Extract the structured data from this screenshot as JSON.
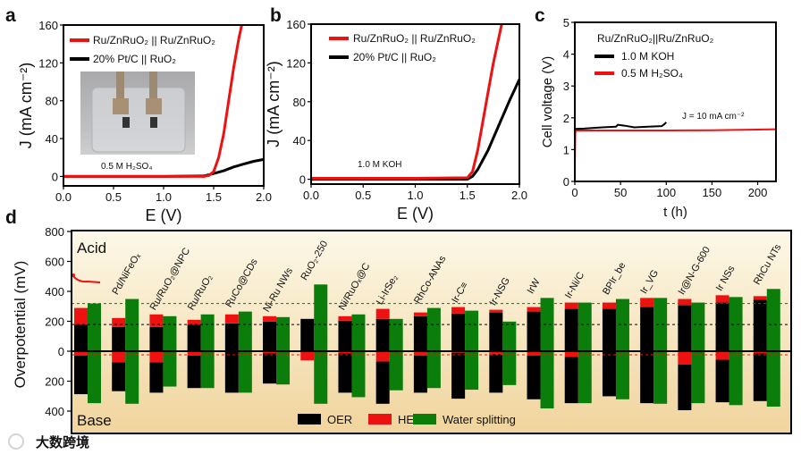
{
  "watermark": "大数跨境",
  "colors": {
    "red": "#ee1111",
    "black": "#000000",
    "green": "#0a7d0a",
    "bg_top": "#fdf8e8",
    "bg_bottom": "#f0d49c"
  },
  "chart_data": [
    {
      "panel": "a",
      "type": "line",
      "xlabel": "E (V)",
      "ylabel": "J (mA cm⁻²)",
      "xlim": [
        0,
        2
      ],
      "ylim": [
        -10,
        160
      ],
      "xticks": [
        0,
        0.5,
        1,
        1.5,
        2
      ],
      "xtick_labels": [
        "0.0",
        "0.5",
        "1.0",
        "1.5",
        "2.0"
      ],
      "yticks": [
        0,
        40,
        80,
        120,
        160
      ],
      "ytick_labels": [
        "0",
        "40",
        "80",
        "120",
        "160"
      ],
      "annotation": "0.5 M H₂SO₄",
      "series": [
        {
          "name": "Ru/ZnRuO₂ || Ru/ZnRuO₂",
          "color": "#ee1111",
          "x": [
            0,
            1.0,
            1.4,
            1.45,
            1.5,
            1.55,
            1.6,
            1.65,
            1.7,
            1.75,
            1.78
          ],
          "y": [
            0,
            0,
            0,
            1,
            5,
            20,
            45,
            80,
            115,
            145,
            160
          ]
        },
        {
          "name": "20% Pt/C || RuO₂",
          "color": "#000000",
          "x": [
            0,
            1.0,
            1.4,
            1.5,
            1.6,
            1.7,
            1.8,
            1.9,
            2.0
          ],
          "y": [
            0,
            0,
            0.5,
            3,
            6,
            10,
            13,
            16,
            18
          ]
        }
      ]
    },
    {
      "panel": "b",
      "type": "line",
      "xlabel": "E (V)",
      "ylabel": "J (mA cm⁻²)",
      "xlim": [
        0,
        2
      ],
      "ylim": [
        -5,
        160
      ],
      "xticks": [
        0,
        0.5,
        1,
        1.5,
        2
      ],
      "xtick_labels": [
        "0.0",
        "0.5",
        "1.0",
        "1.5",
        "2.0"
      ],
      "yticks": [
        0,
        40,
        80,
        120,
        160
      ],
      "ytick_labels": [
        "0",
        "40",
        "80",
        "120",
        "160"
      ],
      "annotation": "1.0 M KOH",
      "series": [
        {
          "name": "Ru/ZnRuO₂ || Ru/ZnRuO₂",
          "color": "#ee1111",
          "x": [
            0,
            1.0,
            1.5,
            1.55,
            1.6,
            1.65,
            1.7,
            1.75,
            1.8,
            1.83
          ],
          "y": [
            1,
            1,
            1.5,
            8,
            30,
            60,
            90,
            120,
            145,
            160
          ]
        },
        {
          "name": "20% Pt/C || RuO₂",
          "color": "#000000",
          "x": [
            0,
            1.0,
            1.5,
            1.55,
            1.6,
            1.7,
            1.8,
            1.9,
            2.0
          ],
          "y": [
            0,
            0,
            0,
            3,
            10,
            30,
            55,
            80,
            103
          ]
        }
      ]
    },
    {
      "panel": "c",
      "type": "line",
      "xlabel": "t (h)",
      "ylabel": "Cell voltage (V)",
      "xlim": [
        0,
        220
      ],
      "ylim": [
        0,
        5
      ],
      "xticks": [
        0,
        50,
        100,
        150,
        200
      ],
      "xtick_labels": [
        "0",
        "50",
        "100",
        "150",
        "200"
      ],
      "yticks": [
        0,
        1,
        2,
        3,
        4,
        5
      ],
      "ytick_labels": [
        "0",
        "1",
        "2",
        "3",
        "4",
        "5"
      ],
      "legend_title": "Ru/ZnRuO₂||Ru/ZnRuO₂",
      "annotation": "J = 10 mA cm⁻²",
      "series": [
        {
          "name": "1.0 M KOH",
          "color": "#000000",
          "x": [
            0,
            10,
            30,
            45,
            47,
            55,
            65,
            80,
            95,
            98,
            100
          ],
          "y": [
            1.65,
            1.66,
            1.7,
            1.72,
            1.78,
            1.75,
            1.7,
            1.72,
            1.74,
            1.8,
            1.86
          ]
        },
        {
          "name": "0.5 M H₂SO₄",
          "color": "#ee1111",
          "x": [
            0,
            0.5,
            1,
            50,
            100,
            150,
            200,
            220
          ],
          "y": [
            0.5,
            1.5,
            1.6,
            1.6,
            1.6,
            1.61,
            1.63,
            1.64
          ]
        }
      ]
    },
    {
      "panel": "d",
      "type": "bar",
      "ylabel": "Overpotential (mV)",
      "ylim": [
        -550,
        800
      ],
      "yticks": [
        800,
        600,
        400,
        200,
        0,
        -200,
        -400
      ],
      "ytick_labels": [
        "800",
        "600",
        "400",
        "200",
        "0",
        "200",
        "400"
      ],
      "region_labels": {
        "top": "Acid",
        "bottom": "Base"
      },
      "legend": [
        "OER",
        "HER",
        "Water splitting"
      ],
      "reference_lines": [
        {
          "series": "Water splitting",
          "value": 319,
          "color": "#0a7d0a"
        },
        {
          "series": "OER",
          "value": 178,
          "color": "#000000"
        },
        {
          "series": "HER",
          "value": -24,
          "color": "#ee1111"
        }
      ],
      "categories": [
        "",
        "Pd/NiFeOₓ",
        "Ru/RuO₂@NPC",
        "Ru/RuO₂",
        "RuCo@CDs",
        "Ni-Ru NWs",
        "RuO₂-250",
        "Ni/RuOₓ@C",
        "Li-IrSe₂",
        "RhCo-ANAs",
        "Ir-C≡",
        "Ir-NSG",
        "IrW",
        "Ir-Ni/C",
        "BPIr_be",
        "Ir_VG",
        "Ir@N-G-600",
        "Ir NSs",
        "RhCu NTs"
      ],
      "acid": {
        "OER": [
          178,
          162,
          162,
          178,
          186,
          198,
          216,
          204,
          216,
          234,
          252,
          259,
          265,
          283,
          283,
          295,
          307,
          325,
          343
        ],
        "HER": [
          111,
          60,
          84,
          32,
          60,
          36,
          0,
          30,
          67,
          25,
          43,
          18,
          30,
          42,
          42,
          61,
          42,
          49,
          25
        ],
        "Water splitting": [
          319,
          349,
          234,
          246,
          265,
          228,
          446,
          246,
          216,
          289,
          271,
          198,
          356,
          325,
          349,
          356,
          325,
          362,
          416
        ]
      },
      "base": {
        "OER": [
          257,
          192,
          202,
          216,
          277,
          202,
          0,
          263,
          282,
          247,
          307,
          257,
          291,
          309,
          296,
          342,
          305,
          284,
          319
        ],
        "HER": [
          30,
          75,
          75,
          30,
          0,
          14,
          61,
          14,
          69,
          30,
          10,
          20,
          30,
          38,
          5,
          5,
          89,
          57,
          14
        ],
        "Water splitting": [
          347,
          351,
          236,
          246,
          277,
          222,
          351,
          307,
          261,
          246,
          257,
          226,
          382,
          347,
          321,
          351,
          347,
          360,
          370
        ]
      }
    }
  ]
}
